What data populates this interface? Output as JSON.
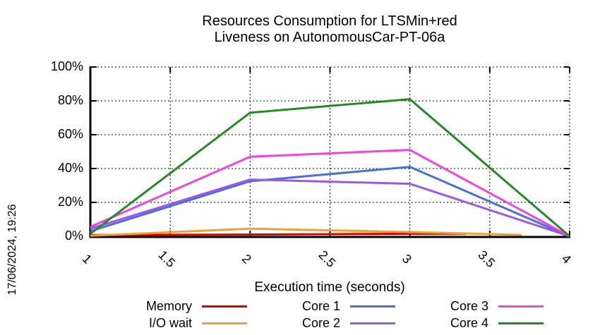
{
  "title": {
    "line1": "Resources Consumption for LTSMin+red",
    "line2": "Liveness on AutonomousCar-PT-06a"
  },
  "timestamp": "17/06/2024, 19:26",
  "chart_data": {
    "type": "line",
    "title": "Resources Consumption for LTSMin+red Liveness on AutonomousCar-PT-06a",
    "xlabel": "Execution time (seconds)",
    "ylabel": "",
    "xlim": [
      1,
      4
    ],
    "ylim": [
      0,
      100
    ],
    "x_ticks": [
      1,
      1.5,
      2,
      2.5,
      3,
      3.5,
      4
    ],
    "x_tick_labels": [
      "1",
      "1.5",
      "2",
      "2.5",
      "3",
      "3.5",
      "4"
    ],
    "y_ticks": [
      0,
      20,
      40,
      60,
      80,
      100
    ],
    "y_tick_labels": [
      "0%",
      "20%",
      "40%",
      "60%",
      "80%",
      "100%"
    ],
    "grid": true,
    "legend_position": "bottom",
    "series": [
      {
        "name": "Memory",
        "color": "#dd0000",
        "points": [
          [
            1,
            0.7
          ],
          [
            2,
            1.0
          ],
          [
            3,
            1.5
          ],
          [
            3.35,
            1.5
          ]
        ]
      },
      {
        "name": "I/O wait",
        "color": "#efa32f",
        "points": [
          [
            1,
            0.3
          ],
          [
            2,
            4.5
          ],
          [
            3,
            2.5
          ],
          [
            3.7,
            0.8
          ]
        ]
      },
      {
        "name": "Core 1",
        "color": "#4a6fd8",
        "points": [
          [
            1,
            3.0
          ],
          [
            2,
            32.5
          ],
          [
            3,
            41.0
          ],
          [
            4,
            0
          ]
        ]
      },
      {
        "name": "Core 2",
        "color": "#9a58e8",
        "points": [
          [
            1,
            4.5
          ],
          [
            2,
            33.5
          ],
          [
            3,
            31.0
          ],
          [
            4,
            0
          ]
        ]
      },
      {
        "name": "Core 3",
        "color": "#f044e0",
        "points": [
          [
            1,
            5.5
          ],
          [
            2,
            47.0
          ],
          [
            3,
            51.0
          ],
          [
            4,
            0
          ]
        ]
      },
      {
        "name": "Core 4",
        "color": "#228b22",
        "points": [
          [
            1,
            1.5
          ],
          [
            2,
            73.0
          ],
          [
            3,
            81.0
          ],
          [
            4,
            0
          ]
        ]
      }
    ]
  }
}
